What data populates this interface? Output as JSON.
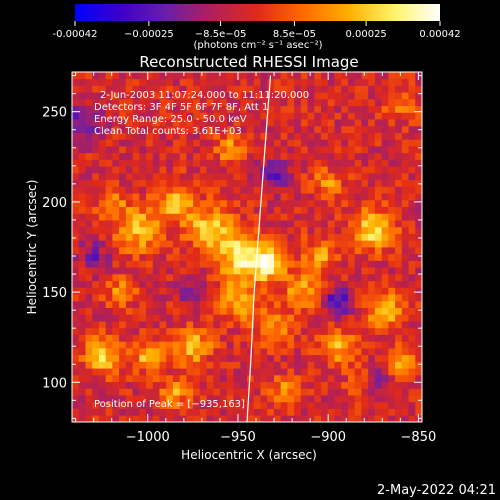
{
  "chart_data": {
    "type": "heatmap",
    "title": "Reconstructed RHESSI Image",
    "xlabel": "Heliocentric X (arcsec)",
    "ylabel": "Heliocentric Y (arcsec)",
    "xlim": [
      -1042,
      -848
    ],
    "ylim": [
      78,
      272
    ],
    "x_ticks": [
      -1000,
      -950,
      -900,
      -850
    ],
    "x_tick_labels": [
      "−1000",
      "−950",
      "−900",
      "−850"
    ],
    "y_ticks": [
      100,
      150,
      200,
      250
    ],
    "y_tick_labels": [
      "100",
      "150",
      "200",
      "250"
    ],
    "colorbar": {
      "range": [
        -0.00042,
        0.00042
      ],
      "ticks": [
        -0.00042,
        -0.00025,
        -8.5e-05,
        8.5e-05,
        0.00025,
        0.00042
      ],
      "tick_labels": [
        "-0.00042",
        "−0.00025",
        "−8.5e−05",
        "8.5e−05",
        "0.00025",
        "0.00042"
      ],
      "label": "(photons cm⁻² s⁻¹ asec⁻²)",
      "colormap": [
        "#0000ff",
        "#3c00c8",
        "#6a1fa8",
        "#b0205a",
        "#e02a1a",
        "#ff6a00",
        "#ffb000",
        "#fff46a",
        "#ffffff"
      ]
    },
    "annotations": [
      "2-Jun-2003 11:07:24.000 to 11:11:20.000",
      "Detectors: 3F 4F 5F 6F 7F 8F, Att 1",
      "Energy Range: 25.0 - 50.0 keV",
      "Clean    Total counts: 3.61E+03"
    ],
    "peak_label": "Position of Peak = [−935,163]",
    "peak": [
      -935,
      163
    ],
    "limb_points": [
      [
        -932,
        270
      ],
      [
        -935,
        230
      ],
      [
        -938,
        190
      ],
      [
        -941,
        150
      ],
      [
        -943,
        110
      ],
      [
        -945,
        78
      ]
    ],
    "grid_size": [
      52,
      52
    ],
    "hot_spots": [
      {
        "x": -933,
        "y": 166,
        "amp": 1.0,
        "r": 6
      },
      {
        "x": -948,
        "y": 170,
        "amp": 0.85,
        "r": 9
      },
      {
        "x": -965,
        "y": 185,
        "amp": 0.7,
        "r": 9
      },
      {
        "x": -985,
        "y": 200,
        "amp": 0.55,
        "r": 8
      },
      {
        "x": -1005,
        "y": 185,
        "amp": 0.6,
        "r": 9
      },
      {
        "x": -1020,
        "y": 200,
        "amp": 0.45,
        "r": 6
      },
      {
        "x": -950,
        "y": 145,
        "amp": 0.6,
        "r": 8
      },
      {
        "x": -930,
        "y": 130,
        "amp": 0.5,
        "r": 7
      },
      {
        "x": -915,
        "y": 150,
        "amp": 0.55,
        "r": 7
      },
      {
        "x": -905,
        "y": 170,
        "amp": 0.5,
        "r": 7
      },
      {
        "x": -875,
        "y": 185,
        "amp": 0.75,
        "r": 8
      },
      {
        "x": -868,
        "y": 140,
        "amp": 0.7,
        "r": 7
      },
      {
        "x": -860,
        "y": 110,
        "amp": 0.55,
        "r": 6
      },
      {
        "x": -880,
        "y": 100,
        "amp": 0.5,
        "r": 6
      },
      {
        "x": -1025,
        "y": 115,
        "amp": 0.75,
        "r": 7
      },
      {
        "x": -1000,
        "y": 115,
        "amp": 0.6,
        "r": 6
      },
      {
        "x": -975,
        "y": 120,
        "amp": 0.65,
        "r": 7
      },
      {
        "x": -985,
        "y": 95,
        "amp": 0.5,
        "r": 6
      },
      {
        "x": -1015,
        "y": 150,
        "amp": 0.45,
        "r": 6
      },
      {
        "x": -895,
        "y": 120,
        "amp": 0.55,
        "r": 7
      },
      {
        "x": -955,
        "y": 230,
        "amp": 0.45,
        "r": 6
      },
      {
        "x": -900,
        "y": 210,
        "amp": 0.45,
        "r": 6
      },
      {
        "x": -860,
        "y": 255,
        "amp": 0.4,
        "r": 6
      },
      {
        "x": -925,
        "y": 95,
        "amp": 0.45,
        "r": 6
      }
    ],
    "cold_spots": [
      {
        "x": -875,
        "y": 100,
        "amp": -0.6,
        "r": 6
      },
      {
        "x": -895,
        "y": 145,
        "amp": -0.5,
        "r": 6
      },
      {
        "x": -1035,
        "y": 245,
        "amp": -0.45,
        "r": 7
      },
      {
        "x": -975,
        "y": 150,
        "amp": -0.4,
        "r": 6
      },
      {
        "x": -930,
        "y": 215,
        "amp": -0.45,
        "r": 6
      },
      {
        "x": -1030,
        "y": 170,
        "amp": -0.35,
        "r": 6
      }
    ]
  },
  "footer": {
    "date": "2-May-2022 04:21"
  }
}
